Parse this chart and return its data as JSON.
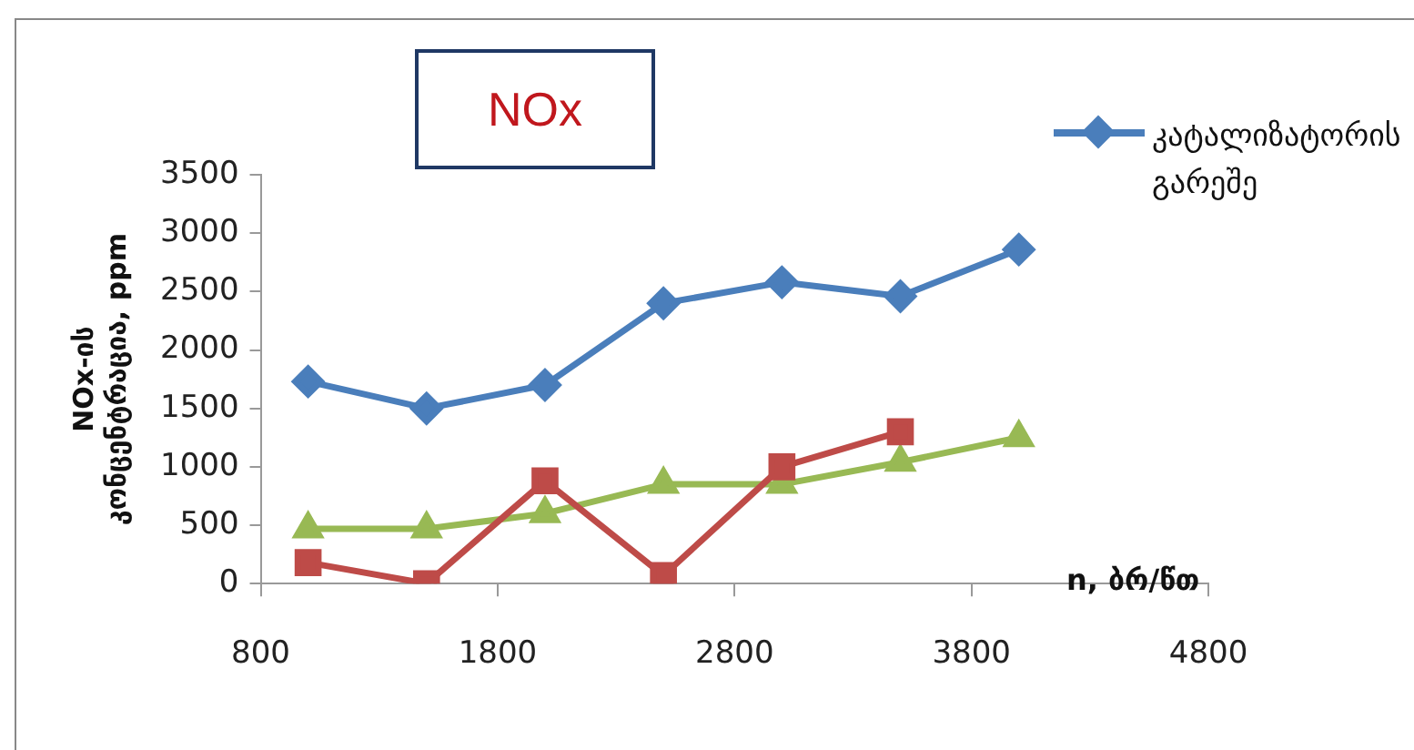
{
  "chart_data": {
    "type": "line",
    "xlabel": "n, ბრ/წთ",
    "ylabel": "NOx-ის კონცენტრაცია, ppm",
    "annotations": [
      "NOx"
    ],
    "x": [
      1000,
      1500,
      2000,
      2500,
      3000,
      3500,
      4000
    ],
    "xlim": [
      800,
      4800
    ],
    "xticks": [
      800,
      1800,
      2800,
      3800,
      4800
    ],
    "ylim": [
      0,
      3500
    ],
    "yticks": [
      0,
      500,
      1000,
      1500,
      2000,
      2500,
      3000,
      3500
    ],
    "grid": false,
    "legend": "top right",
    "line_style": "solid",
    "series": [
      {
        "name": "კატალიზატორის გარეშე",
        "color": "#4a7ebb",
        "marker": "diamond",
        "values": [
          1730,
          1500,
          1700,
          2400,
          2580,
          2460,
          2860
        ]
      },
      {
        "color": "#be4b48",
        "marker": "square",
        "values": [
          180,
          0,
          880,
          70,
          1000,
          1300,
          null
        ]
      },
      {
        "color": "#98b954",
        "marker": "triangle",
        "values": [
          470,
          470,
          600,
          850,
          850,
          1040,
          1250
        ]
      }
    ]
  }
}
